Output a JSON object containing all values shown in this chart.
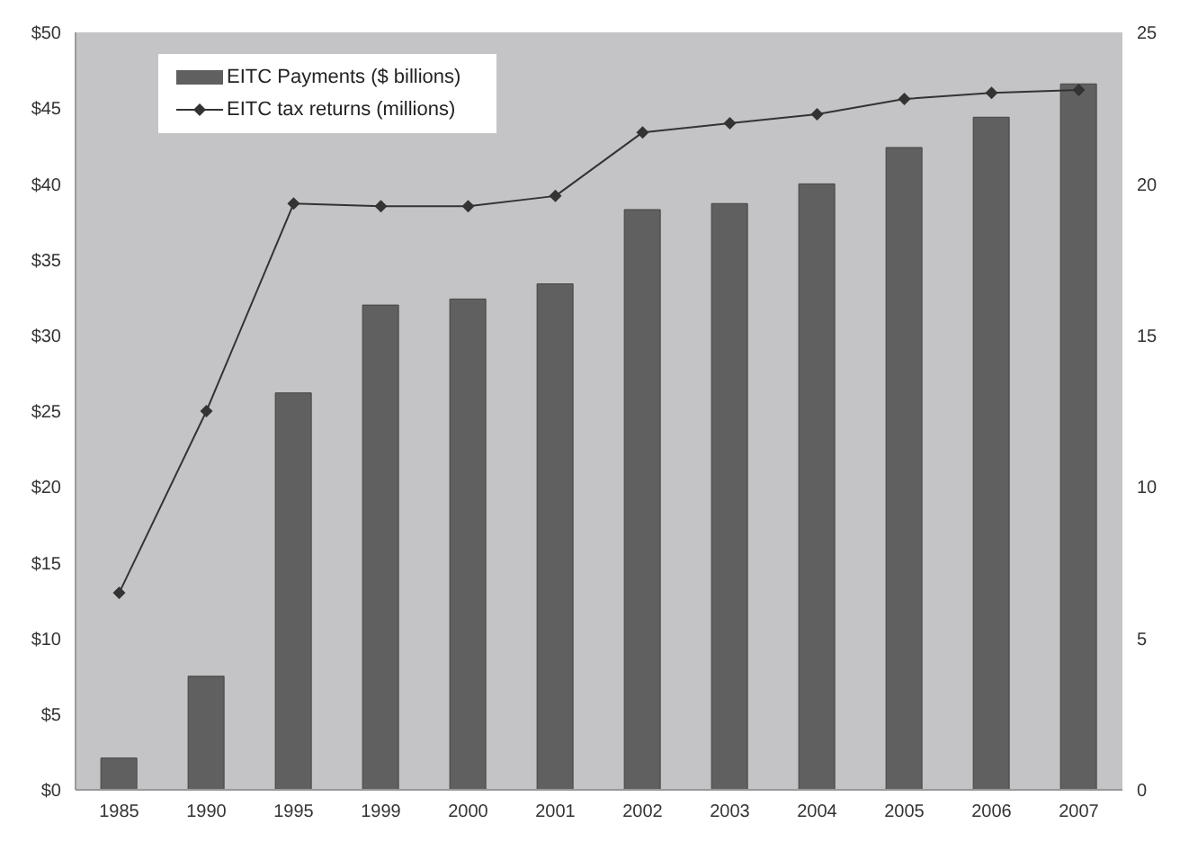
{
  "chart_data": {
    "type": "bar",
    "categories": [
      "1985",
      "1990",
      "1995",
      "1999",
      "2000",
      "2001",
      "2002",
      "2003",
      "2004",
      "2005",
      "2006",
      "2007"
    ],
    "series": [
      {
        "name": "EITC Payments ($ billions)",
        "color": "#606060",
        "values": [
          2.1,
          7.5,
          26.2,
          32.0,
          32.4,
          33.4,
          38.3,
          38.7,
          40.0,
          42.4,
          44.4,
          46.6
        ]
      },
      {
        "name": "EITC tax returns (millions)",
        "type": "line",
        "axis": "y2",
        "color": "#333333",
        "values": [
          6.5,
          12.5,
          19.35,
          19.26,
          19.26,
          19.6,
          21.7,
          22.0,
          22.3,
          22.8,
          23.0,
          23.1
        ]
      }
    ],
    "ylim": [
      0,
      50
    ],
    "yticks": [
      {
        "value": 0,
        "label": "$0"
      },
      {
        "value": 5,
        "label": "$5"
      },
      {
        "value": 10,
        "label": "$10"
      },
      {
        "value": 15,
        "label": "$15"
      },
      {
        "value": 20,
        "label": "$20"
      },
      {
        "value": 25,
        "label": "$25"
      },
      {
        "value": 30,
        "label": "$30"
      },
      {
        "value": 35,
        "label": "$35"
      },
      {
        "value": 40,
        "label": "$40"
      },
      {
        "value": 45,
        "label": "$45"
      },
      {
        "value": 50,
        "label": "$50"
      }
    ],
    "y2lim": [
      0,
      25
    ],
    "y2ticks": [
      0,
      5,
      10,
      15,
      20,
      25
    ],
    "legend": "top left",
    "marker": "diamond"
  }
}
